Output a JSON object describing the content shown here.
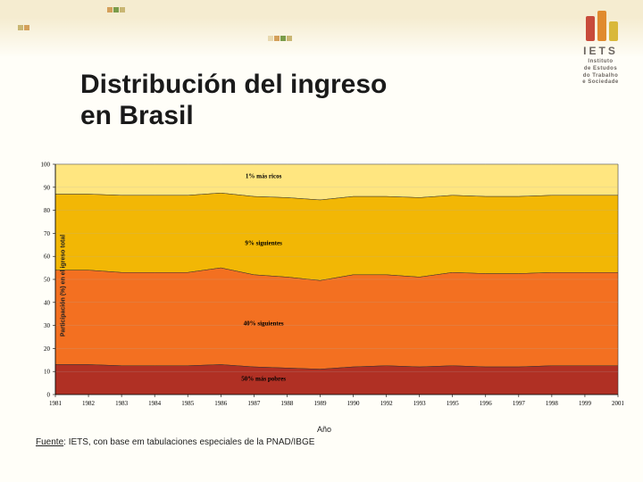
{
  "title_line1": "Distribución del ingreso",
  "title_line2": "en Brasil",
  "logo": {
    "name": "IETS",
    "sub": "Instituto\nde Estudos\ndo Trabalho\ne Sociedade",
    "bars": [
      "#c84b3b",
      "#e08a2e",
      "#d9b83a"
    ]
  },
  "chart": {
    "type": "stacked-area",
    "ylabel": "Participación (%) en el igreso total",
    "xlabel": "Año",
    "ylim": [
      0,
      100
    ],
    "ytick_step": 10,
    "background_color": "#fdf0d2",
    "grid_color": "#b0b0b0",
    "axis_fontsize": 7,
    "years": [
      1981,
      1982,
      1983,
      1984,
      1985,
      1986,
      1987,
      1988,
      1989,
      1990,
      1992,
      1993,
      1995,
      1996,
      1997,
      1998,
      1999,
      2001
    ],
    "series": [
      {
        "name": "50% más pobres",
        "label_y": 6,
        "color": "#b03024",
        "cum": [
          13,
          13,
          12.5,
          12.5,
          12.5,
          13,
          12,
          11.5,
          11,
          12,
          12.5,
          12,
          12.5,
          12,
          12,
          12.5,
          12.5,
          12.5
        ]
      },
      {
        "name": "40% siguientes",
        "label_y": 30,
        "color": "#f37021",
        "cum": [
          54,
          54,
          53,
          53,
          53,
          55,
          52,
          51,
          49.5,
          52,
          52,
          51,
          53,
          52.5,
          52.5,
          53,
          53,
          53
        ]
      },
      {
        "name": "9% siguientes",
        "label_y": 65,
        "color": "#f2b705",
        "cum": [
          87,
          87,
          86.5,
          86.5,
          86.5,
          87.5,
          86,
          85.5,
          84.5,
          86,
          86,
          85.5,
          86.5,
          86,
          86,
          86.5,
          86.5,
          86.5
        ]
      },
      {
        "name": "1% más ricos",
        "label_y": 94,
        "color": "#ffe680",
        "cum": [
          100,
          100,
          100,
          100,
          100,
          100,
          100,
          100,
          100,
          100,
          100,
          100,
          100,
          100,
          100,
          100,
          100,
          100
        ]
      }
    ],
    "label_fontsize": 7,
    "label_weight": "bold"
  },
  "source_label": "Fuente",
  "source_text": ": IETS, con base em tabulaciones especiales de la PNAD/IBGE",
  "deco_colors": {
    "a": "#d4a05a",
    "b": "#7a9c4a",
    "c": "#c9b673",
    "d": "#e8d9b0"
  }
}
